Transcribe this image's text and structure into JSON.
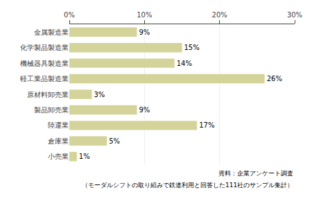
{
  "chart_data": {
    "type": "bar",
    "orientation": "horizontal",
    "categories": [
      "金属製造業",
      "化学製品製造業",
      "機械器具製造業",
      "軽工業品製造業",
      "原材料卸売業",
      "製品卸売業",
      "陸運業",
      "倉庫業",
      "小売業"
    ],
    "values": [
      9,
      15,
      14,
      26,
      3,
      9,
      17,
      5,
      1
    ],
    "value_labels": [
      "9%",
      "15%",
      "14%",
      "26%",
      "3%",
      "9%",
      "17%",
      "5%",
      "1%"
    ],
    "data_labels": true,
    "color": "#d4d49a",
    "xlim": [
      0,
      30
    ],
    "xticks": [
      {
        "value": 0,
        "label": "0%"
      },
      {
        "value": 10,
        "label": "10%"
      },
      {
        "value": 20,
        "label": "20%"
      },
      {
        "value": 30,
        "label": "30%"
      }
    ],
    "grid": true,
    "annotations": [
      "資料：企業アンケート調査",
      "（モーダルシフトの取り組みで鉄道利用と回答した111社のサンプル集計）"
    ]
  }
}
